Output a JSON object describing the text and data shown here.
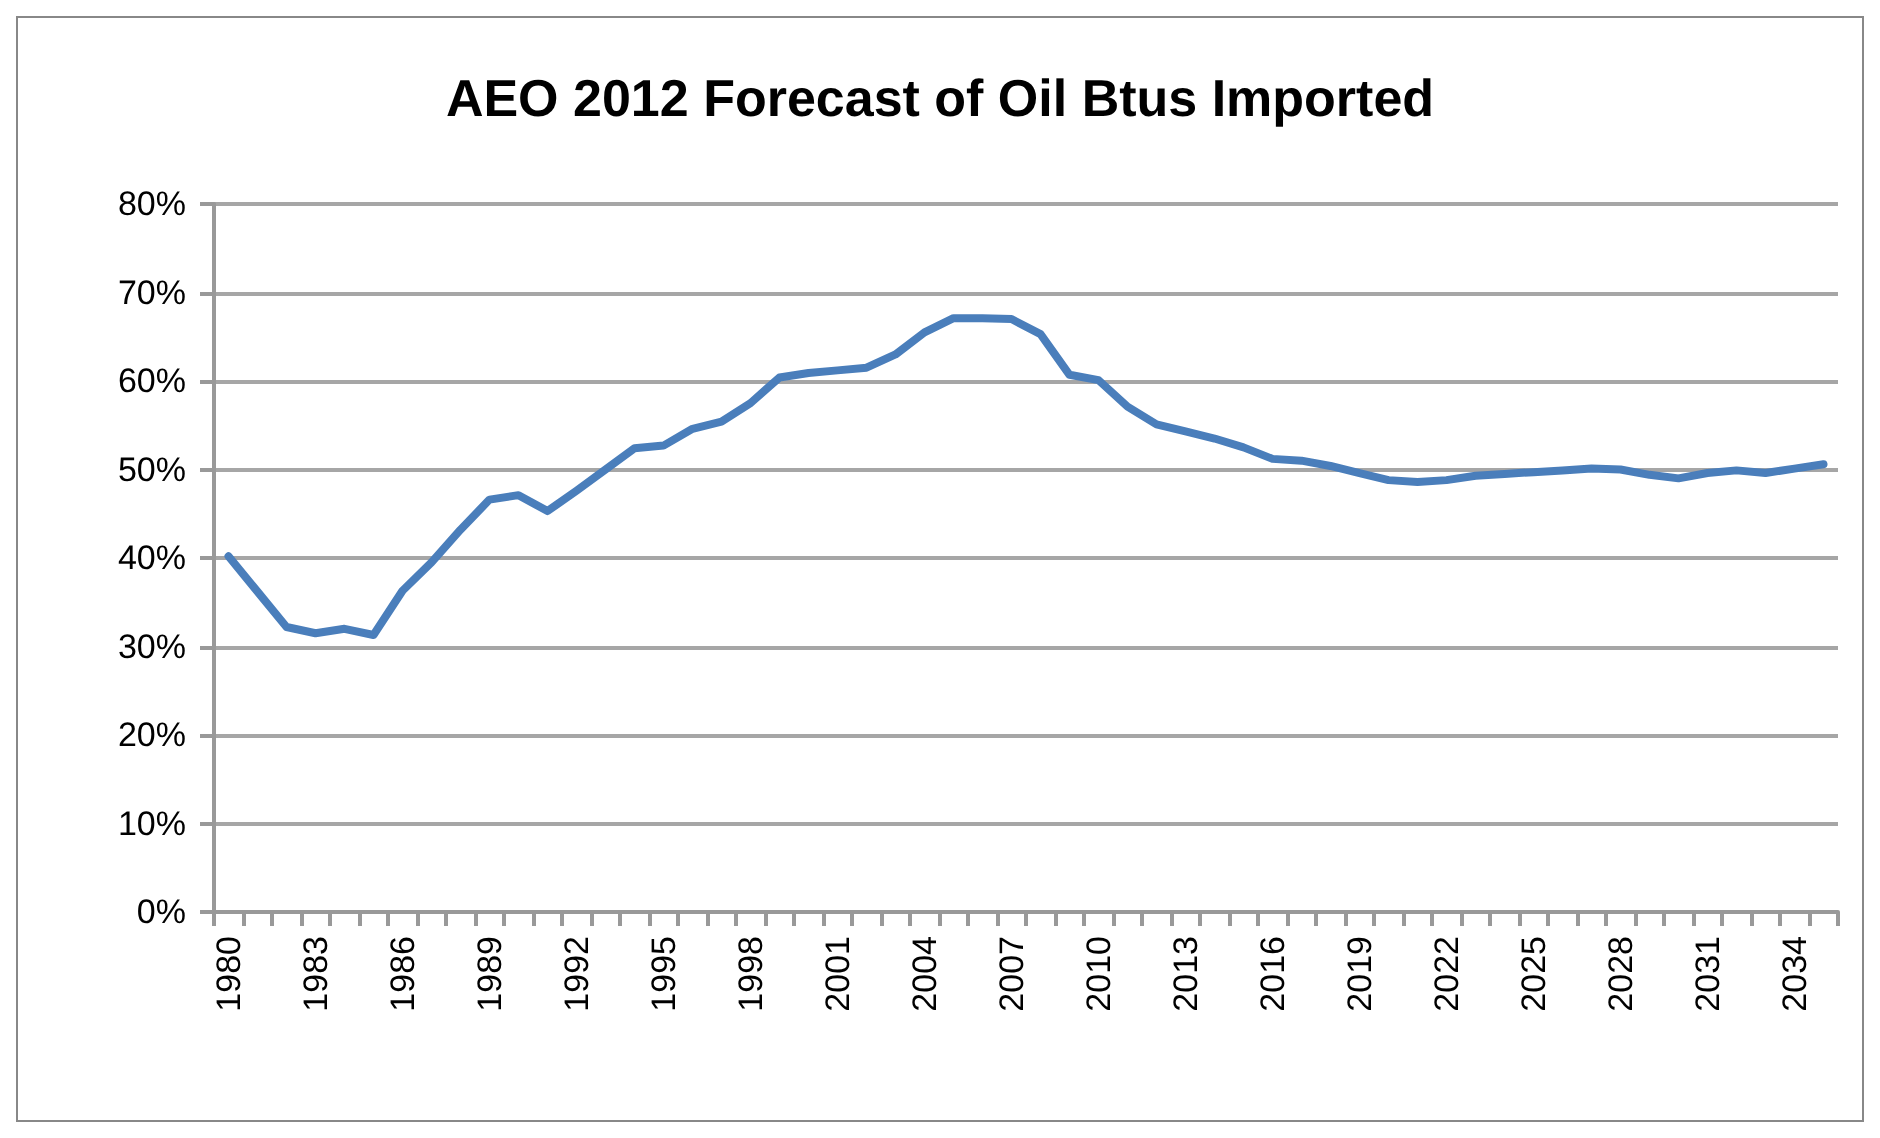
{
  "chart_data": {
    "type": "line",
    "title": "AEO 2012 Forecast of Oil Btus Imported",
    "categories": [
      "1980",
      null,
      null,
      "1983",
      null,
      null,
      "1986",
      null,
      null,
      "1989",
      null,
      null,
      "1992",
      null,
      null,
      "1995",
      null,
      null,
      "1998",
      null,
      null,
      "2001",
      null,
      null,
      "2004",
      null,
      null,
      "2007",
      null,
      null,
      "2010",
      null,
      null,
      "2013",
      null,
      null,
      "2016",
      null,
      null,
      "2019",
      null,
      null,
      "2022",
      null,
      null,
      "2025",
      null,
      null,
      "2028",
      null,
      null,
      "2031",
      null,
      null,
      "2034",
      null
    ],
    "series": [
      {
        "color": "#4a7ebb",
        "values": [
          40.2,
          36.2,
          32.2,
          31.5,
          32.0,
          31.3,
          36.3,
          39.5,
          43.2,
          46.6,
          47.1,
          45.3,
          47.6,
          50.0,
          52.4,
          52.7,
          54.6,
          55.4,
          57.5,
          60.4,
          60.9,
          61.2,
          61.5,
          63.0,
          65.5,
          67.1,
          67.1,
          67.0,
          65.3,
          60.7,
          60.1,
          57.1,
          55.1,
          54.3,
          53.5,
          52.5,
          51.2,
          51.0,
          50.4,
          49.6,
          48.8,
          48.6,
          48.8,
          49.3,
          49.5,
          49.7,
          49.9,
          50.1,
          50.0,
          49.4,
          49.0,
          49.6,
          49.9,
          49.6,
          50.1,
          50.6
        ]
      }
    ],
    "ylim": [
      0,
      80
    ],
    "yticks": [
      {
        "value": 0,
        "label": "0%"
      },
      {
        "value": 10,
        "label": "10%"
      },
      {
        "value": 20,
        "label": "20%"
      },
      {
        "value": 30,
        "label": "30%"
      },
      {
        "value": 40,
        "label": "40%"
      },
      {
        "value": 50,
        "label": "50%"
      },
      {
        "value": 60,
        "label": "60%"
      },
      {
        "value": 70,
        "label": "70%"
      },
      {
        "value": 80,
        "label": "80%"
      }
    ],
    "grid": "y",
    "marker": "none",
    "line_style": "solid"
  }
}
